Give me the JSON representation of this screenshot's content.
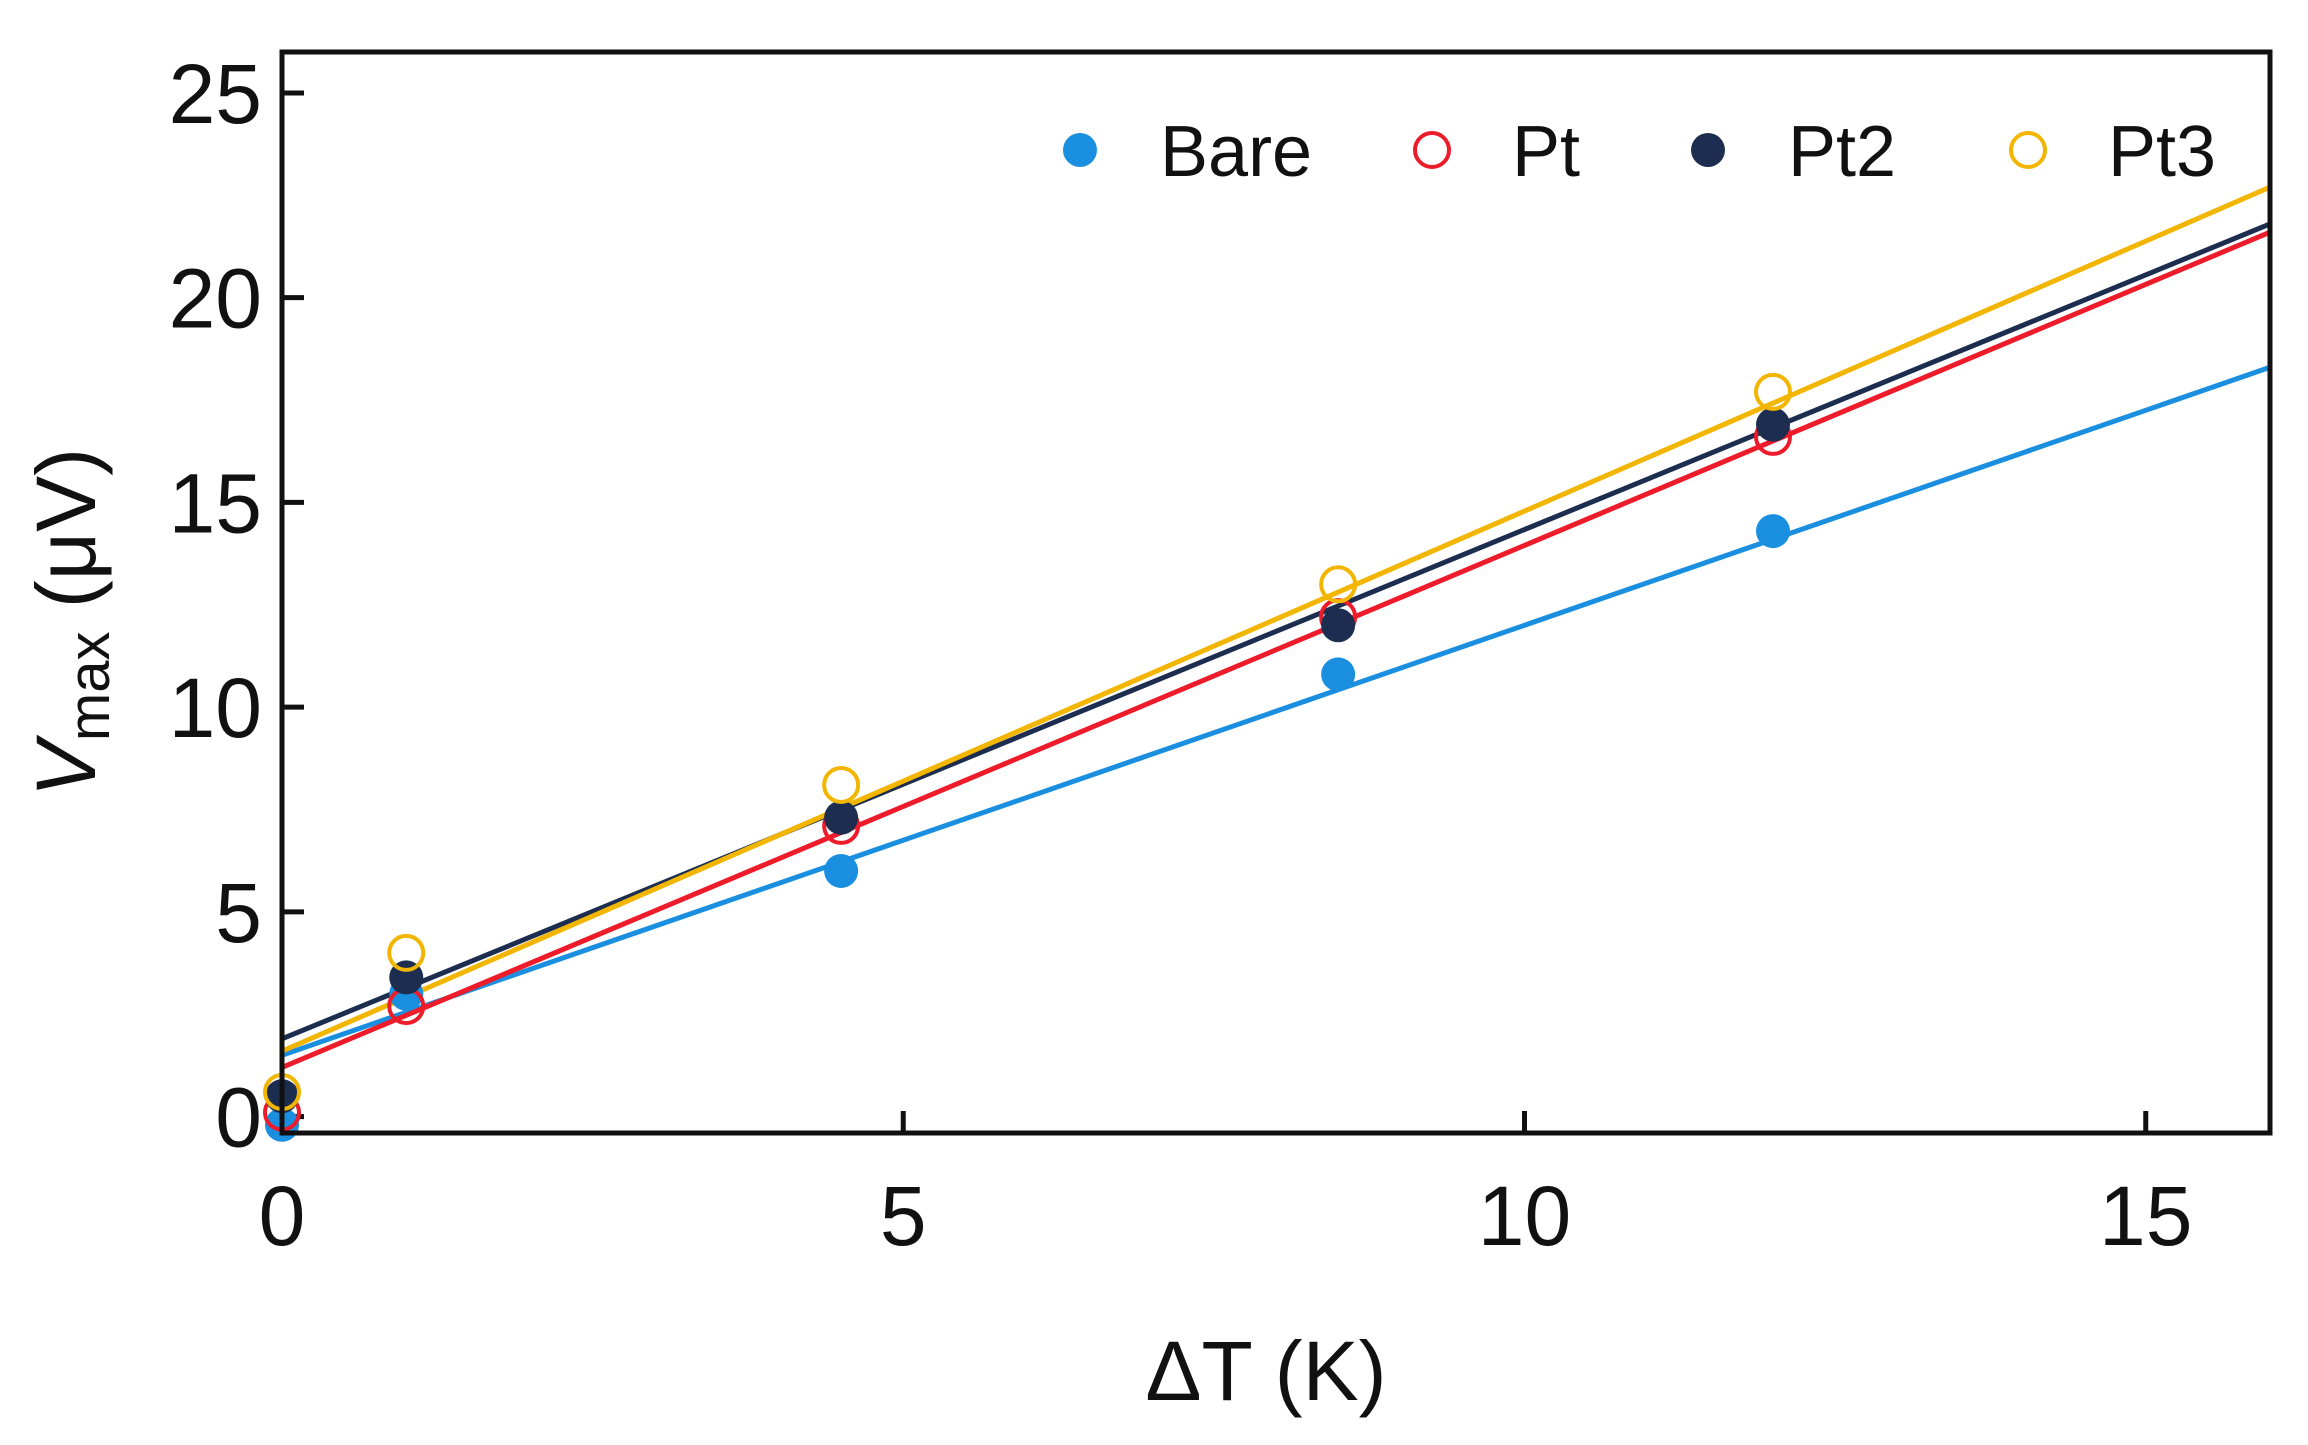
{
  "chart_data": {
    "type": "scatter",
    "xlabel": "ΔT (K)",
    "ylabel": {
      "main": "V",
      "subscript": "max",
      "unit": " (μV)"
    },
    "xlim": [
      0,
      16
    ],
    "ylim": [
      -0.4,
      26
    ],
    "xticks": [
      0,
      5,
      10,
      15
    ],
    "yticks": [
      0,
      5,
      10,
      15,
      20,
      25
    ],
    "legend_position": "top-right",
    "series": [
      {
        "name": "Bare",
        "color": "#1a8fe0",
        "marker": "filled-circle",
        "x": [
          0,
          1,
          4.5,
          8.5,
          12
        ],
        "y": [
          -0.2,
          3.0,
          6.0,
          10.8,
          14.3
        ],
        "fit": {
          "x": [
            0,
            16
          ],
          "y": [
            1.5,
            18.3
          ]
        }
      },
      {
        "name": "Pt",
        "color": "#ee1c2a",
        "marker": "open-circle",
        "x": [
          0,
          1,
          4.5,
          8.5,
          12
        ],
        "y": [
          0.1,
          2.7,
          7.1,
          12.2,
          16.6
        ],
        "fit": {
          "x": [
            0,
            16
          ],
          "y": [
            1.2,
            21.6
          ]
        }
      },
      {
        "name": "Pt2",
        "color": "#1c2d4f",
        "marker": "filled-circle",
        "x": [
          0,
          1,
          4.5,
          8.5,
          12
        ],
        "y": [
          0.5,
          3.4,
          7.3,
          12.0,
          16.9
        ],
        "fit": {
          "x": [
            0,
            16
          ],
          "y": [
            1.9,
            21.8
          ]
        }
      },
      {
        "name": "Pt3",
        "color": "#f2b600",
        "marker": "open-circle",
        "x": [
          0,
          1,
          4.5,
          8.5,
          12
        ],
        "y": [
          0.6,
          4.0,
          8.1,
          13.0,
          17.7
        ],
        "fit": {
          "x": [
            0,
            16
          ],
          "y": [
            1.6,
            22.7
          ]
        }
      }
    ]
  }
}
